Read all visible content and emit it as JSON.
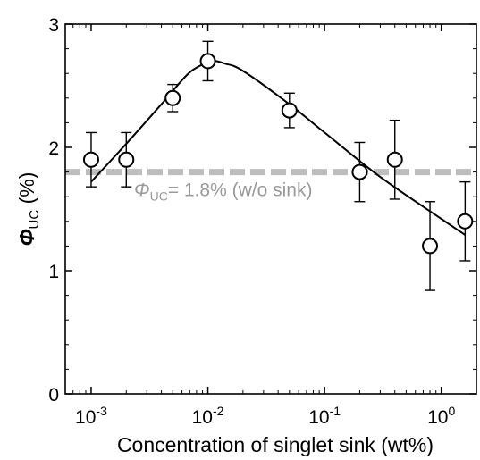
{
  "chart_data": {
    "type": "scatter",
    "xscale": "log",
    "xlim": [
      0.0006,
      2.0
    ],
    "ylim": [
      0,
      3
    ],
    "xlabel": "Concentration of singlet sink (wt%)",
    "ylabel": {
      "symbol": "Φ",
      "subscript": "UC",
      "unit": " (%)"
    },
    "x_ticks": [
      {
        "value": 0.001,
        "base": "10",
        "exp": "-3"
      },
      {
        "value": 0.01,
        "base": "10",
        "exp": "-2"
      },
      {
        "value": 0.1,
        "base": "10",
        "exp": "-1"
      },
      {
        "value": 1,
        "base": "10",
        "exp": "0"
      }
    ],
    "y_ticks": [
      {
        "value": 0,
        "label": "0"
      },
      {
        "value": 1,
        "label": "1"
      },
      {
        "value": 2,
        "label": "2"
      },
      {
        "value": 3,
        "label": "3"
      }
    ],
    "points": [
      {
        "x": 0.001,
        "y": 1.9,
        "err": 0.22
      },
      {
        "x": 0.002,
        "y": 1.9,
        "err": 0.22
      },
      {
        "x": 0.005,
        "y": 2.4,
        "err": 0.11
      },
      {
        "x": 0.01,
        "y": 2.7,
        "err": 0.16
      },
      {
        "x": 0.05,
        "y": 2.3,
        "err": 0.14
      },
      {
        "x": 0.2,
        "y": 1.8,
        "err": 0.24
      },
      {
        "x": 0.4,
        "y": 1.9,
        "err": 0.32
      },
      {
        "x": 0.8,
        "y": 1.2,
        "err": 0.36
      },
      {
        "x": 1.6,
        "y": 1.4,
        "err": 0.32
      }
    ],
    "fit_curve": [
      {
        "x": 0.001,
        "y": 1.72
      },
      {
        "x": 0.002,
        "y": 2.03
      },
      {
        "x": 0.004,
        "y": 2.35
      },
      {
        "x": 0.0065,
        "y": 2.58
      },
      {
        "x": 0.0085,
        "y": 2.66
      },
      {
        "x": 0.011,
        "y": 2.7
      },
      {
        "x": 0.014,
        "y": 2.68
      },
      {
        "x": 0.02,
        "y": 2.62
      },
      {
        "x": 0.05,
        "y": 2.35
      },
      {
        "x": 0.1,
        "y": 2.12
      },
      {
        "x": 0.3,
        "y": 1.76
      },
      {
        "x": 1.0,
        "y": 1.42
      },
      {
        "x": 1.6,
        "y": 1.29
      }
    ],
    "reference": {
      "y": 1.8,
      "color": "#bdbdbd",
      "label_symbol": "Φ",
      "label_subscript": "UC",
      "label_rest": "= 1.8% (w/o sink)"
    },
    "marker_fill": "#ffffff",
    "line_color": "#000000",
    "grid": false,
    "legend": "none"
  }
}
